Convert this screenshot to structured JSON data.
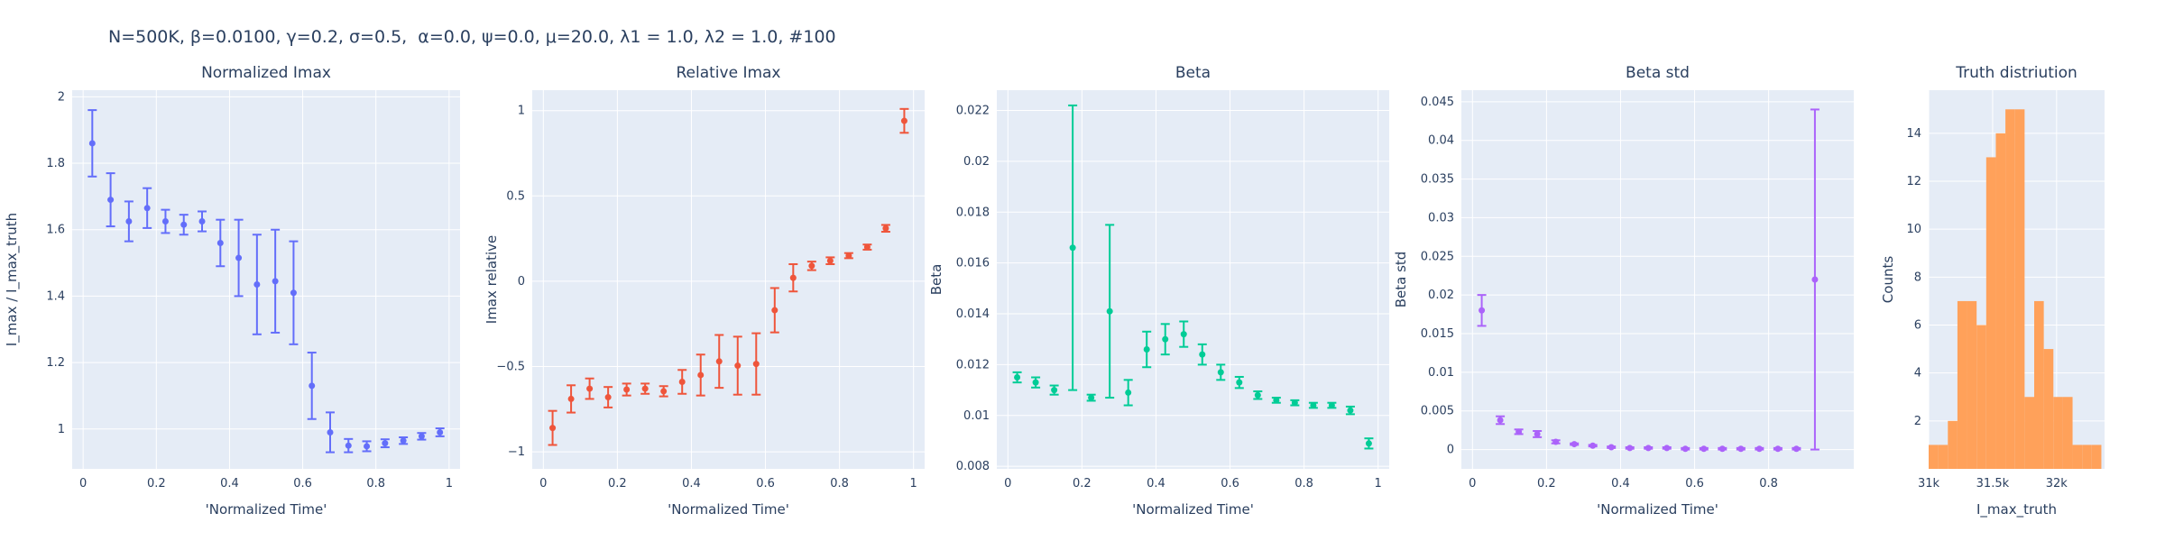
{
  "figure": {
    "title": "N=500K, β=0.0100, γ=0.2, σ=0.5,  α=0.0, ψ=0.0, μ=20.0, λ1 = 1.0, λ2 = 1.0, #100"
  },
  "chart_data": [
    {
      "type": "scatter",
      "title": "Normalized Imax",
      "xlabel": "'Normalized Time'",
      "ylabel": "I_max / I_max_truth",
      "color": "#636efa",
      "xlim": [
        -0.03,
        1.03
      ],
      "ylim": [
        0.88,
        2.02
      ],
      "xticks": [
        0,
        0.2,
        0.4,
        0.6,
        0.8,
        1
      ],
      "xtick_labels": [
        "0",
        "0.2",
        "0.4",
        "0.6",
        "0.8",
        "1"
      ],
      "yticks": [
        1,
        1.2,
        1.4,
        1.6,
        1.8,
        2
      ],
      "ytick_labels": [
        "1",
        "1.2",
        "1.4",
        "1.6",
        "1.8",
        "2"
      ],
      "x": [
        0.025,
        0.075,
        0.125,
        0.175,
        0.225,
        0.275,
        0.325,
        0.375,
        0.425,
        0.475,
        0.525,
        0.575,
        0.625,
        0.675,
        0.725,
        0.775,
        0.825,
        0.875,
        0.925,
        0.975
      ],
      "y": [
        1.86,
        1.69,
        1.625,
        1.665,
        1.625,
        1.615,
        1.625,
        1.56,
        1.515,
        1.435,
        1.445,
        1.41,
        1.13,
        0.99,
        0.95,
        0.948,
        0.957,
        0.965,
        0.978,
        0.99
      ],
      "err": [
        0.1,
        0.08,
        0.06,
        0.06,
        0.035,
        0.03,
        0.03,
        0.07,
        0.115,
        0.15,
        0.155,
        0.155,
        0.1,
        0.06,
        0.02,
        0.015,
        0.012,
        0.01,
        0.01,
        0.012
      ]
    },
    {
      "type": "scatter",
      "title": "Relative Imax",
      "xlabel": "'Normalized Time'",
      "ylabel": "Imax relative",
      "color": "#ef553b",
      "xlim": [
        -0.03,
        1.03
      ],
      "ylim": [
        -1.1,
        1.12
      ],
      "xticks": [
        0,
        0.2,
        0.4,
        0.6,
        0.8,
        1
      ],
      "xtick_labels": [
        "0",
        "0.2",
        "0.4",
        "0.6",
        "0.8",
        "1"
      ],
      "yticks": [
        -1,
        -0.5,
        0,
        0.5,
        1
      ],
      "ytick_labels": [
        "−1",
        "−0.5",
        "0",
        "0.5",
        "1"
      ],
      "x": [
        0.025,
        0.075,
        0.125,
        0.175,
        0.225,
        0.275,
        0.325,
        0.375,
        0.425,
        0.475,
        0.525,
        0.575,
        0.625,
        0.675,
        0.725,
        0.775,
        0.825,
        0.875,
        0.925,
        0.975
      ],
      "y": [
        -0.86,
        -0.69,
        -0.63,
        -0.68,
        -0.635,
        -0.63,
        -0.645,
        -0.59,
        -0.55,
        -0.47,
        -0.495,
        -0.485,
        -0.17,
        0.02,
        0.09,
        0.12,
        0.15,
        0.2,
        0.31,
        0.94
      ],
      "err": [
        0.1,
        0.08,
        0.06,
        0.06,
        0.035,
        0.03,
        0.03,
        0.07,
        0.12,
        0.155,
        0.17,
        0.18,
        0.13,
        0.08,
        0.025,
        0.02,
        0.015,
        0.015,
        0.02,
        0.07
      ]
    },
    {
      "type": "scatter",
      "title": "Beta",
      "xlabel": "'Normalized Time'",
      "ylabel": "Beta",
      "color": "#00cc96",
      "xlim": [
        -0.03,
        1.03
      ],
      "ylim": [
        0.0079,
        0.0228
      ],
      "xticks": [
        0,
        0.2,
        0.4,
        0.6,
        0.8,
        1
      ],
      "xtick_labels": [
        "0",
        "0.2",
        "0.4",
        "0.6",
        "0.8",
        "1"
      ],
      "yticks": [
        0.008,
        0.01,
        0.012,
        0.014,
        0.016,
        0.018,
        0.02,
        0.022
      ],
      "ytick_labels": [
        "0.008",
        "0.01",
        "0.012",
        "0.014",
        "0.016",
        "0.018",
        "0.02",
        "0.022"
      ],
      "x": [
        0.025,
        0.075,
        0.125,
        0.175,
        0.225,
        0.275,
        0.325,
        0.375,
        0.425,
        0.475,
        0.525,
        0.575,
        0.625,
        0.675,
        0.725,
        0.775,
        0.825,
        0.875,
        0.925,
        0.975
      ],
      "y": [
        0.0115,
        0.0113,
        0.011,
        0.0166,
        0.0107,
        0.0141,
        0.0109,
        0.0126,
        0.013,
        0.0132,
        0.0124,
        0.0117,
        0.0113,
        0.0108,
        0.0106,
        0.0105,
        0.0104,
        0.0104,
        0.0102,
        0.0089
      ],
      "err": [
        0.0002,
        0.0002,
        0.00018,
        0.0056,
        0.00012,
        0.0034,
        0.0005,
        0.0007,
        0.0006,
        0.0005,
        0.0004,
        0.0003,
        0.00022,
        0.00015,
        0.0001,
        0.0001,
        0.0001,
        0.0001,
        0.00015,
        0.0002
      ]
    },
    {
      "type": "scatter",
      "title": "Beta std",
      "xlabel": "'Normalized Time'",
      "ylabel": "Beta std",
      "color": "#ab63fa",
      "xlim": [
        -0.03,
        1.03
      ],
      "ylim": [
        -0.0025,
        0.0465
      ],
      "xticks": [
        0,
        0.2,
        0.4,
        0.6,
        0.8
      ],
      "xtick_labels": [
        "0",
        "0.2",
        "0.4",
        "0.6",
        "0.8"
      ],
      "yticks": [
        0,
        0.005,
        0.01,
        0.015,
        0.02,
        0.025,
        0.03,
        0.035,
        0.04,
        0.045
      ],
      "ytick_labels": [
        "0",
        "0.005",
        "0.01",
        "0.015",
        "0.02",
        "0.025",
        "0.03",
        "0.035",
        "0.04",
        "0.045"
      ],
      "x": [
        0.025,
        0.075,
        0.125,
        0.175,
        0.225,
        0.275,
        0.325,
        0.375,
        0.425,
        0.475,
        0.525,
        0.575,
        0.625,
        0.675,
        0.725,
        0.775,
        0.825,
        0.875,
        0.925
      ],
      "y": [
        0.018,
        0.0038,
        0.0023,
        0.002,
        0.001,
        0.0007,
        0.0005,
        0.0003,
        0.0002,
        0.0002,
        0.0002,
        0.0001,
        0.0001,
        0.0001,
        0.0001,
        0.0001,
        0.0001,
        0.0001,
        0.022
      ],
      "err": [
        0.002,
        0.0005,
        0.0003,
        0.0004,
        0.0002,
        0.0001,
        0.0001,
        0.0001,
        0.0001,
        0.0001,
        0.0001,
        0.0001,
        0.0001,
        0.0001,
        0.0001,
        0.0001,
        0.0001,
        0.0001,
        0.022
      ]
    },
    {
      "type": "bar",
      "title": "Truth distriution",
      "xlabel": "I_max_truth",
      "ylabel": "Counts",
      "color": "#ffa15a",
      "xlim": [
        31000,
        32375
      ],
      "ylim": [
        0,
        15.8
      ],
      "xticks": [
        31000,
        31500,
        32000
      ],
      "xtick_labels": [
        "31k",
        "31.5k",
        "32k"
      ],
      "yticks": [
        2,
        4,
        6,
        8,
        10,
        12,
        14
      ],
      "ytick_labels": [
        "2",
        "4",
        "6",
        "8",
        "10",
        "12",
        "14"
      ],
      "bin_start": 31000,
      "bin_width": 75,
      "values": [
        1,
        1,
        2,
        7,
        7,
        6,
        13,
        14,
        15,
        15,
        3,
        7,
        5,
        3,
        3,
        1,
        1,
        1
      ]
    }
  ]
}
